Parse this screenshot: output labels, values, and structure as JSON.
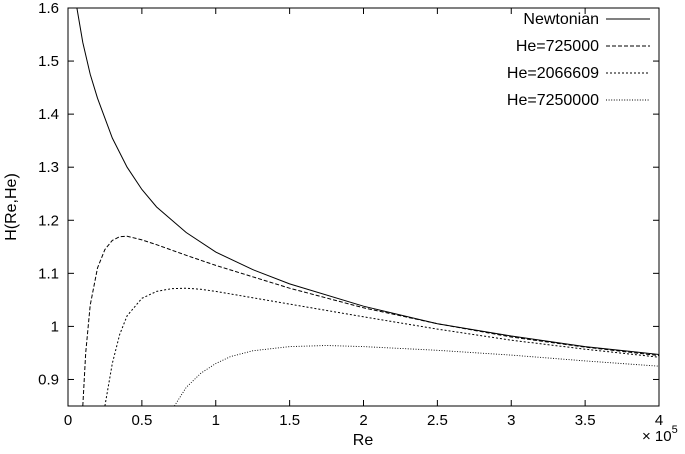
{
  "chart_data": {
    "type": "line",
    "xlabel": "Re",
    "ylabel": "H(Re,He)",
    "x_multiplier_base": "× 10",
    "x_multiplier_exp": "5",
    "xlim": [
      0,
      4
    ],
    "ylim": [
      0.85,
      1.6
    ],
    "xticks": [
      0,
      0.5,
      1,
      1.5,
      2,
      2.5,
      3,
      3.5,
      4
    ],
    "xtick_labels": [
      "0",
      "0.5",
      "1",
      "1.5",
      "2",
      "2.5",
      "3",
      "3.5",
      "4"
    ],
    "yticks": [
      0.9,
      1,
      1.1,
      1.2,
      1.3,
      1.4,
      1.5,
      1.6
    ],
    "ytick_labels": [
      "0.9",
      "1",
      "1.1",
      "1.2",
      "1.3",
      "1.4",
      "1.5",
      "1.6"
    ],
    "grid": false,
    "legend_position": "top-right",
    "series": [
      {
        "name": "Newtonian",
        "dash": "solid",
        "x": [
          0.06,
          0.1,
          0.15,
          0.2,
          0.3,
          0.4,
          0.5,
          0.6,
          0.8,
          1.0,
          1.25,
          1.5,
          2.0,
          2.5,
          3.0,
          3.5,
          4.0
        ],
        "y": [
          1.6,
          1.535,
          1.475,
          1.43,
          1.355,
          1.3,
          1.258,
          1.225,
          1.177,
          1.14,
          1.107,
          1.08,
          1.038,
          1.005,
          0.982,
          0.962,
          0.947
        ]
      },
      {
        "name": "He=725000",
        "dash": "dashed",
        "x": [
          0.1,
          0.12,
          0.15,
          0.2,
          0.25,
          0.3,
          0.35,
          0.4,
          0.5,
          0.6,
          0.8,
          1.0,
          1.5,
          2.0,
          2.5,
          3.0,
          3.5,
          4.0
        ],
        "y": [
          0.85,
          0.95,
          1.04,
          1.11,
          1.145,
          1.162,
          1.169,
          1.17,
          1.163,
          1.154,
          1.134,
          1.115,
          1.072,
          1.035,
          1.005,
          0.98,
          0.961,
          0.945
        ]
      },
      {
        "name": "He=2066609",
        "dash": "dotted",
        "x": [
          0.25,
          0.3,
          0.35,
          0.4,
          0.5,
          0.6,
          0.7,
          0.8,
          0.9,
          1.0,
          1.5,
          2.0,
          2.5,
          3.0,
          3.5,
          4.0
        ],
        "y": [
          0.85,
          0.93,
          0.985,
          1.02,
          1.053,
          1.066,
          1.071,
          1.072,
          1.07,
          1.066,
          1.042,
          1.018,
          0.995,
          0.974,
          0.957,
          0.942
        ]
      },
      {
        "name": "He=7250000",
        "dash": "finedotted",
        "x": [
          0.72,
          0.8,
          0.9,
          1.0,
          1.1,
          1.25,
          1.5,
          1.75,
          2.0,
          2.5,
          3.0,
          3.5,
          4.0
        ],
        "y": [
          0.85,
          0.885,
          0.912,
          0.93,
          0.943,
          0.954,
          0.962,
          0.964,
          0.962,
          0.955,
          0.946,
          0.935,
          0.925
        ]
      }
    ]
  }
}
